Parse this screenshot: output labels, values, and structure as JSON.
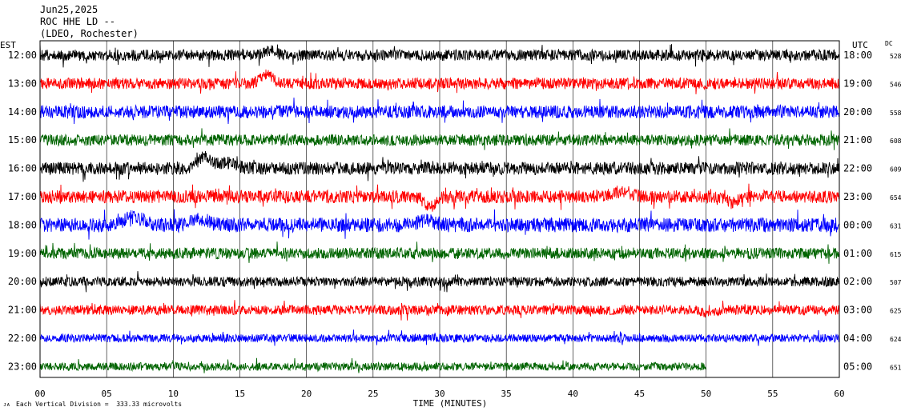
{
  "header": {
    "date": "Jun25,2025",
    "station": "ROC HHE LD --",
    "network": "(LDEO, Rochester)"
  },
  "chart_data": {
    "type": "line",
    "title": "",
    "xlabel": "TIME (MINUTES)",
    "left_axis_label": "EST",
    "right_axis_label": "UTC",
    "dc_label": "DC",
    "xlim": [
      0,
      60
    ],
    "x_tick_labels": [
      "00",
      "05",
      "10",
      "15",
      "20",
      "25",
      "30",
      "35",
      "40",
      "45",
      "50",
      "55",
      "60"
    ],
    "grid": true,
    "footnote": "Each Vertical Division =  333.33 microvolts",
    "traces": [
      {
        "est": "12:00",
        "utc": "18:00",
        "dc": "528",
        "color": "#000000",
        "end_min": 60,
        "amp": 7,
        "events": [
          {
            "t": 17.3,
            "a": -6,
            "w": 0.7
          }
        ]
      },
      {
        "est": "13:00",
        "utc": "19:00",
        "dc": "546",
        "color": "#ff0000",
        "end_min": 60,
        "amp": 7,
        "events": [
          {
            "t": 17.0,
            "a": -12,
            "w": 0.6
          }
        ]
      },
      {
        "est": "14:00",
        "utc": "20:00",
        "dc": "558",
        "color": "#0000ff",
        "end_min": 60,
        "amp": 8,
        "events": []
      },
      {
        "est": "15:00",
        "utc": "21:00",
        "dc": "608",
        "color": "#006400",
        "end_min": 60,
        "amp": 7,
        "events": []
      },
      {
        "est": "16:00",
        "utc": "22:00",
        "dc": "609",
        "color": "#000000",
        "end_min": 60,
        "amp": 8,
        "events": [
          {
            "t": 12.3,
            "a": -14,
            "w": 0.7
          },
          {
            "t": 14.0,
            "a": -7,
            "w": 0.9
          }
        ]
      },
      {
        "est": "17:00",
        "utc": "23:00",
        "dc": "654",
        "color": "#ff0000",
        "end_min": 60,
        "amp": 8,
        "events": [
          {
            "t": 29.3,
            "a": 12,
            "w": 0.6
          },
          {
            "t": 43.5,
            "a": -6,
            "w": 1.0
          },
          {
            "t": 52.0,
            "a": 8,
            "w": 0.5
          }
        ]
      },
      {
        "est": "18:00",
        "utc": "00:00",
        "dc": "631",
        "color": "#0000ff",
        "end_min": 60,
        "amp": 9,
        "events": [
          {
            "t": 7.0,
            "a": -10,
            "w": 1.0
          },
          {
            "t": 12.0,
            "a": -8,
            "w": 0.8
          },
          {
            "t": 29.0,
            "a": -6,
            "w": 0.8
          }
        ]
      },
      {
        "est": "19:00",
        "utc": "01:00",
        "dc": "615",
        "color": "#006400",
        "end_min": 60,
        "amp": 7,
        "events": []
      },
      {
        "est": "20:00",
        "utc": "02:00",
        "dc": "507",
        "color": "#000000",
        "end_min": 60,
        "amp": 6,
        "events": []
      },
      {
        "est": "21:00",
        "utc": "03:00",
        "dc": "625",
        "color": "#ff0000",
        "end_min": 60,
        "amp": 6,
        "events": [
          {
            "t": 50.3,
            "a": 6,
            "w": 0.6
          }
        ]
      },
      {
        "est": "22:00",
        "utc": "04:00",
        "dc": "624",
        "color": "#0000ff",
        "end_min": 60,
        "amp": 5,
        "events": []
      },
      {
        "est": "23:00",
        "utc": "05:00",
        "dc": "651",
        "color": "#006400",
        "end_min": 50,
        "amp": 5,
        "events": []
      }
    ]
  }
}
